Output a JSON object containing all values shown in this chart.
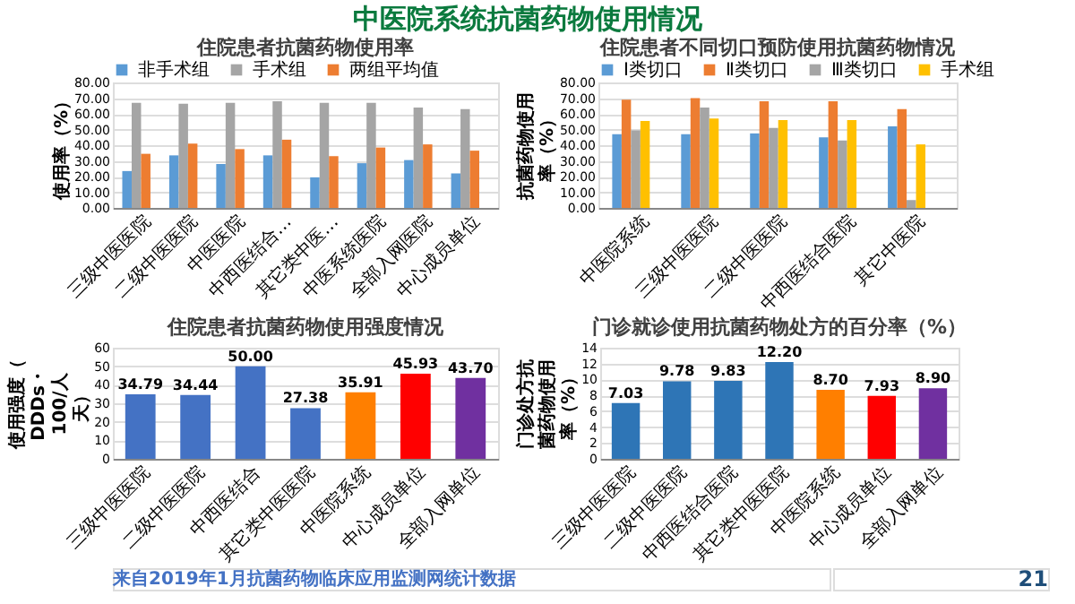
{
  "chart_data": [
    {
      "type": "bar",
      "title": "住院患者抗菌药物使用率",
      "ylabel": "使用率（%）",
      "annotations": [
        "中医院系统抗菌药物使用情况"
      ],
      "categories": [
        "三级中医医院",
        "二级中医医院",
        "中医医院",
        "中西医结合…",
        "其它类中医…",
        "中医系统医院",
        "全部入网医院",
        "中心成员单位"
      ],
      "series": [
        {
          "name": "非手术组",
          "color": "#5b9bd5",
          "values": [
            23.5,
            33.5,
            28,
            33.5,
            19.5,
            28.5,
            30.5,
            22
          ]
        },
        {
          "name": "手术组",
          "color": "#a5a5a5",
          "values": [
            67,
            66.5,
            67,
            68,
            67,
            67,
            64,
            63
          ]
        },
        {
          "name": "两组平均值",
          "color": "#ed7d31",
          "values": [
            34.5,
            41,
            37.5,
            43.5,
            33,
            38.5,
            40.5,
            36.5
          ]
        }
      ],
      "ylim": [
        0,
        80
      ],
      "yticks": [
        {
          "value": 0,
          "label": "0.00"
        },
        {
          "value": 10,
          "label": "10.00"
        },
        {
          "value": 20,
          "label": "20.00"
        },
        {
          "value": 30,
          "label": "30.00"
        },
        {
          "value": 40,
          "label": "40.00"
        },
        {
          "value": 50,
          "label": "50.00"
        },
        {
          "value": 60,
          "label": "60.00"
        },
        {
          "value": 70,
          "label": "70.00"
        },
        {
          "value": 80,
          "label": "80.00"
        }
      ],
      "grid": "y",
      "legend": "top"
    },
    {
      "type": "bar",
      "title": "住院患者不同切口预防使用抗菌药物情况",
      "ylabel": "抗菌药物使用率（%）",
      "categories": [
        "中医院系统",
        "三级中医医院",
        "二级中医医院",
        "中西医结合医院",
        "其它中医院"
      ],
      "series": [
        {
          "name": "Ⅰ类切口",
          "color": "#5b9bd5",
          "values": [
            47,
            47,
            47.5,
            45,
            52
          ]
        },
        {
          "name": "Ⅱ类切口",
          "color": "#ed7d31",
          "values": [
            69,
            70,
            68,
            68,
            63
          ]
        },
        {
          "name": "Ⅲ类切口",
          "color": "#a5a5a5",
          "values": [
            49.5,
            64,
            51,
            43,
            5
          ]
        },
        {
          "name": "手术组",
          "color": "#ffc000",
          "values": [
            55.5,
            57,
            56,
            56,
            40.5
          ]
        }
      ],
      "ylim": [
        0,
        80
      ],
      "yticks": [
        {
          "value": 0,
          "label": "0.00"
        },
        {
          "value": 10,
          "label": "10.00"
        },
        {
          "value": 20,
          "label": "20.00"
        },
        {
          "value": 30,
          "label": "30.00"
        },
        {
          "value": 40,
          "label": "40.00"
        },
        {
          "value": 50,
          "label": "50.00"
        },
        {
          "value": 60,
          "label": "60.00"
        },
        {
          "value": 70,
          "label": "70.00"
        },
        {
          "value": 80,
          "label": "80.00"
        }
      ],
      "grid": "y",
      "legend": "top"
    },
    {
      "type": "bar",
      "title": "住院患者抗菌药物使用强度情况",
      "ylabel": "使用强度（DDDs・100/人天）",
      "annotations": [
        "来自2019年1月抗菌药物临床应用监测网统计数据",
        "21"
      ],
      "categories": [
        "三级中医医院",
        "二级中医医院",
        "中西医结合",
        "其它类中医医院",
        "中医院系统",
        "中心成员单位",
        "全部入网单位"
      ],
      "values": [
        34.79,
        34.44,
        50.0,
        27.38,
        35.91,
        45.93,
        43.7
      ],
      "value_labels": [
        "34.79",
        "34.44",
        "50.00",
        "27.38",
        "35.91",
        "45.93",
        "43.70"
      ],
      "colors": [
        "#4472c4",
        "#4472c4",
        "#4472c4",
        "#4472c4",
        "#ff7f00",
        "#ff0000",
        "#7030a0"
      ],
      "ylim": [
        0,
        60
      ],
      "yticks": [
        0,
        10,
        20,
        30,
        40,
        50,
        60
      ],
      "grid": "y"
    },
    {
      "type": "bar",
      "title": "门诊就诊使用抗菌药物处方的百分率（%）",
      "ylabel": "门诊处方抗菌药物使用率（%）",
      "categories": [
        "三级中医医院",
        "二级中医医院",
        "中西医结合医院",
        "其它类中医医院",
        "中医院系统",
        "中心成员单位",
        "全部入网单位"
      ],
      "values": [
        7.03,
        9.78,
        9.83,
        12.2,
        8.7,
        7.93,
        8.9
      ],
      "value_labels": [
        "7.03",
        "9.78",
        "9.83",
        "12.20",
        "8.70",
        "7.93",
        "8.90"
      ],
      "colors": [
        "#2e75b6",
        "#2e75b6",
        "#2e75b6",
        "#2e75b6",
        "#ff7f00",
        "#ff0000",
        "#7030a0"
      ],
      "ylim": [
        0,
        14
      ],
      "yticks": [
        0,
        2,
        4,
        6,
        8,
        10,
        12,
        14
      ],
      "grid": "y"
    }
  ]
}
